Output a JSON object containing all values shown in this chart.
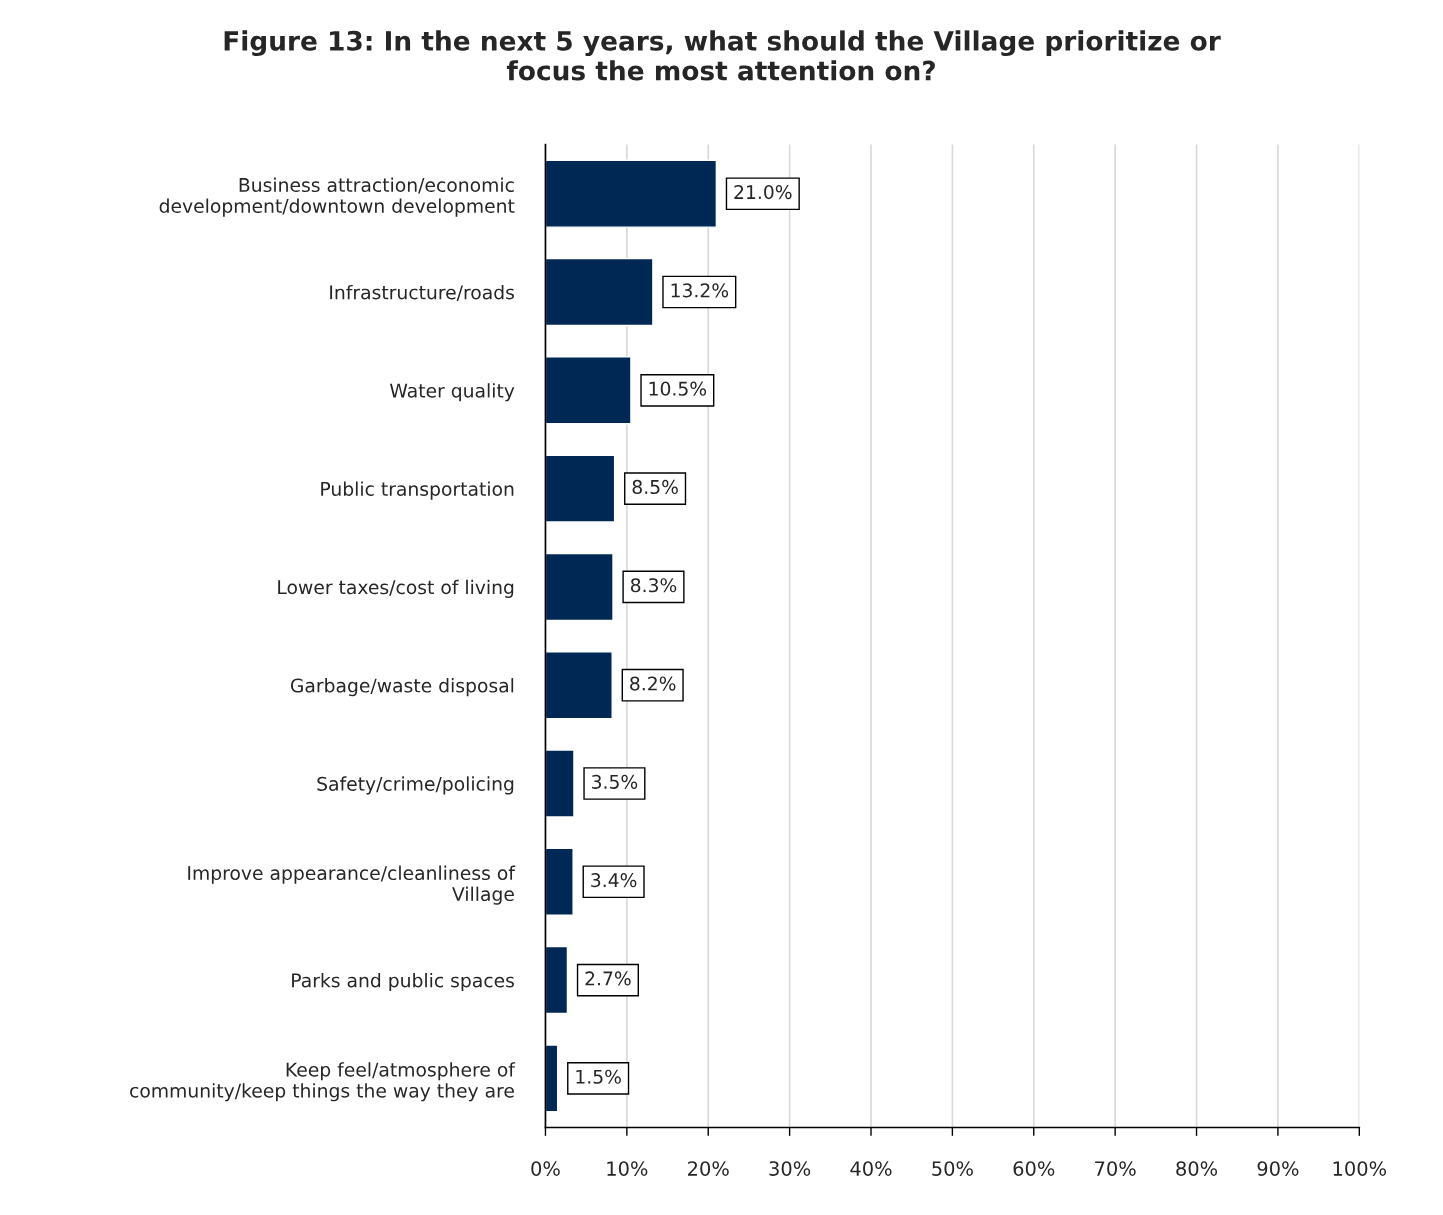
{
  "chart_data": {
    "type": "bar",
    "orientation": "horizontal",
    "title": "Figure 13: In the next 5 years, what should the Village prioritize or\nfocus the most attention on?",
    "categories": [
      "Business attraction/economic\ndevelopment/downtown development",
      "Infrastructure/roads",
      "Water quality",
      "Public transportation",
      "Lower taxes/cost of living",
      "Garbage/waste disposal",
      "Safety/crime/policing",
      "Improve appearance/cleanliness of\nVillage",
      "Parks and public spaces",
      "Keep feel/atmosphere of\ncommunity/keep things the way they are"
    ],
    "values": [
      21.0,
      13.2,
      10.5,
      8.5,
      8.3,
      8.2,
      3.5,
      3.4,
      2.7,
      1.5
    ],
    "value_labels": [
      "21.0%",
      "13.2%",
      "10.5%",
      "8.5%",
      "8.3%",
      "8.2%",
      "3.5%",
      "3.4%",
      "2.7%",
      "1.5%"
    ],
    "color": "#002855",
    "xlim": [
      0,
      100
    ],
    "xticks": [
      {
        "value": 0,
        "label": "0%"
      },
      {
        "value": 10,
        "label": "10%"
      },
      {
        "value": 20,
        "label": "20%"
      },
      {
        "value": 30,
        "label": "30%"
      },
      {
        "value": 40,
        "label": "40%"
      },
      {
        "value": 50,
        "label": "50%"
      },
      {
        "value": 60,
        "label": "60%"
      },
      {
        "value": 70,
        "label": "70%"
      },
      {
        "value": 80,
        "label": "80%"
      },
      {
        "value": 90,
        "label": "90%"
      },
      {
        "value": 100,
        "label": "100%"
      }
    ],
    "grid": "x",
    "legend": false
  }
}
